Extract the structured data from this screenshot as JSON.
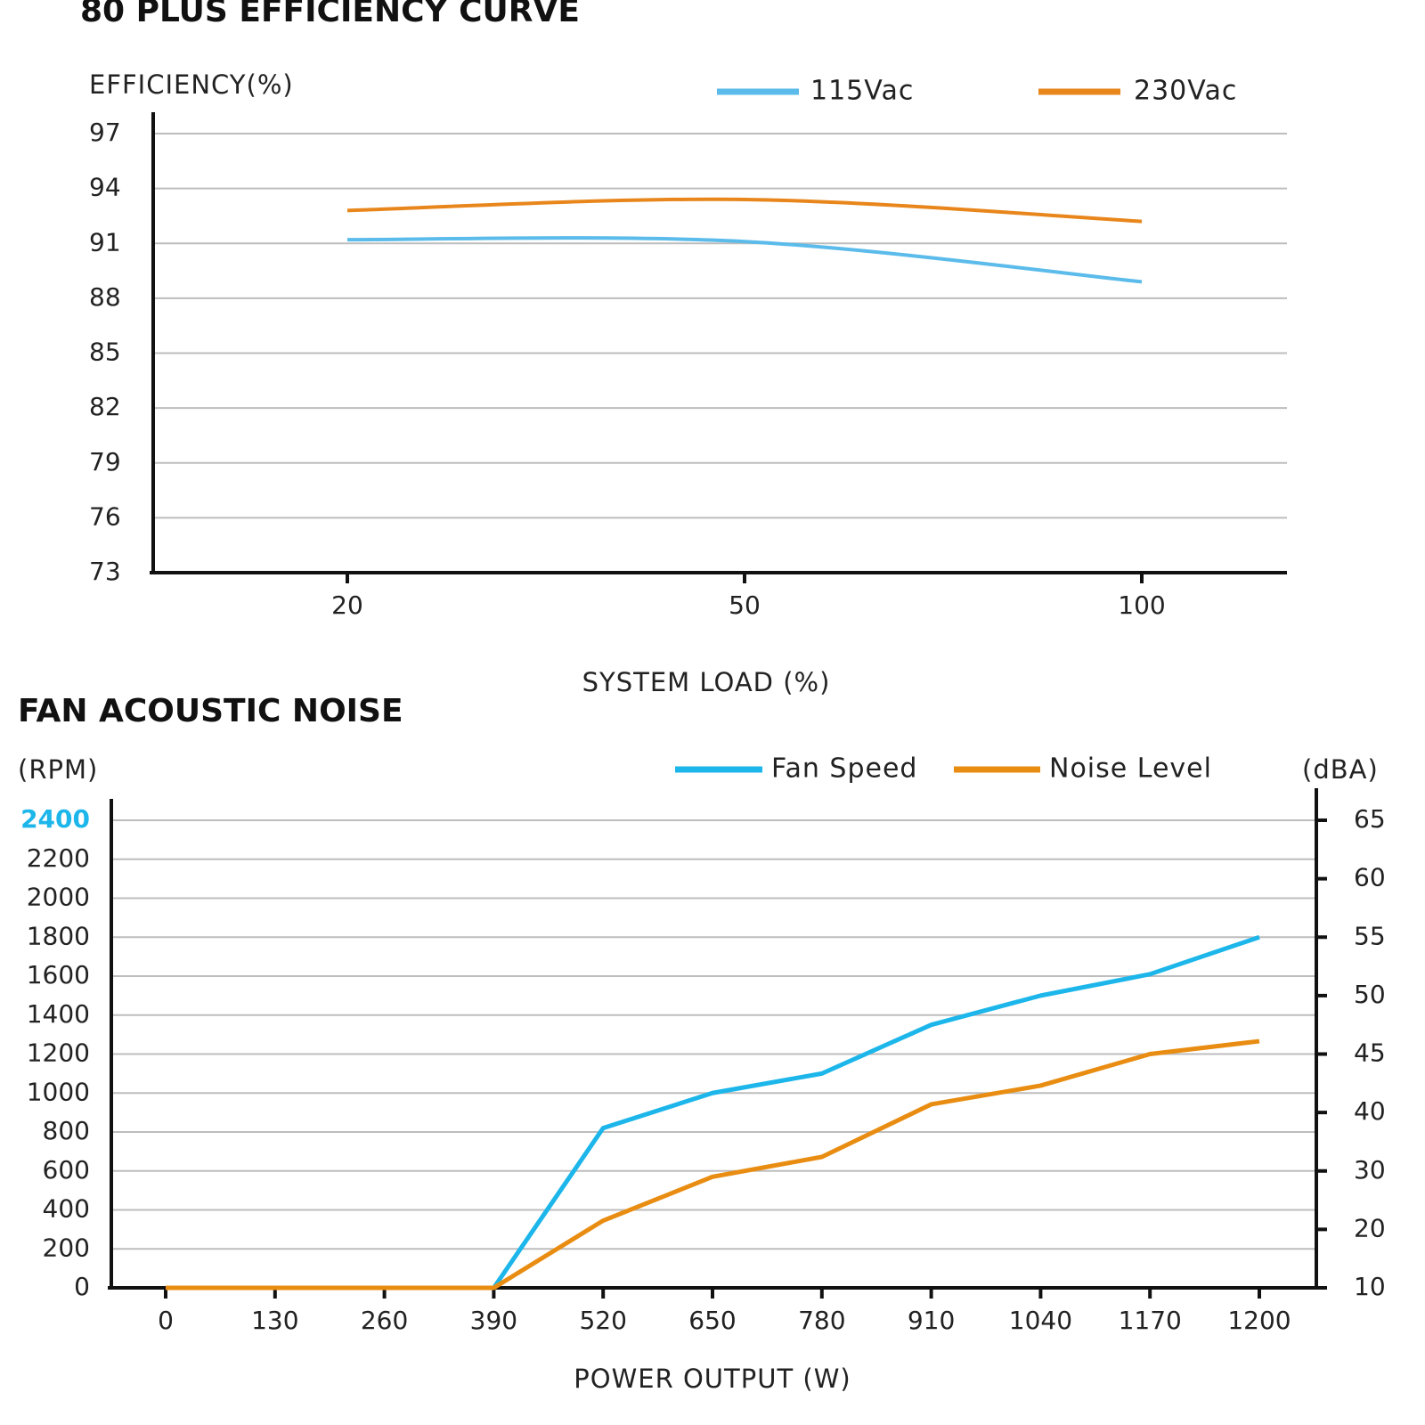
{
  "chart_data": [
    {
      "type": "line",
      "title": "80 PLUS EFFICIENCY CURVE",
      "y_label": "EFFICIENCY(%)",
      "x_label": "SYSTEM LOAD (%)",
      "categories": [
        "20",
        "50",
        "100"
      ],
      "series": [
        {
          "name": "115Vac",
          "color": "#5bbbea",
          "values": [
            91.2,
            91.1,
            88.9
          ]
        },
        {
          "name": "230Vac",
          "color": "#e8861c",
          "values": [
            92.8,
            93.4,
            92.2
          ]
        }
      ],
      "ylim": [
        73,
        97
      ],
      "yticks": [
        73,
        76,
        79,
        82,
        85,
        88,
        91,
        94,
        97
      ],
      "grid": true,
      "smooth": true
    },
    {
      "type": "line",
      "title": "FAN ACOUSTIC NOISE",
      "y_label": "(RPM)",
      "y2_label": "(dBA)",
      "x_label": "POWER OUTPUT (W)",
      "categories": [
        "0",
        "130",
        "260",
        "390",
        "520",
        "650",
        "780",
        "910",
        "1040",
        "1170",
        "1200"
      ],
      "series": [
        {
          "name": "Fan Speed",
          "color": "#1cb6ea",
          "values": [
            0,
            0,
            0,
            0,
            820,
            1000,
            1100,
            1350,
            1500,
            1610,
            1800
          ]
        },
        {
          "name": "Noise Level",
          "color": "#e98d12",
          "axis": "y2",
          "values": [
            10,
            10,
            10,
            10,
            21.5,
            29,
            32.4,
            40.7,
            42.3,
            45,
            46.1
          ]
        }
      ],
      "ylim": [
        0,
        2400
      ],
      "yticks": [
        0,
        200,
        400,
        600,
        800,
        1000,
        1200,
        1400,
        1600,
        1800,
        2000,
        2200,
        2400
      ],
      "y2lim": [
        10,
        65
      ],
      "y2ticks": [
        10,
        20,
        30,
        40,
        45,
        50,
        55,
        60,
        65
      ],
      "grid": true,
      "smooth": false
    }
  ]
}
